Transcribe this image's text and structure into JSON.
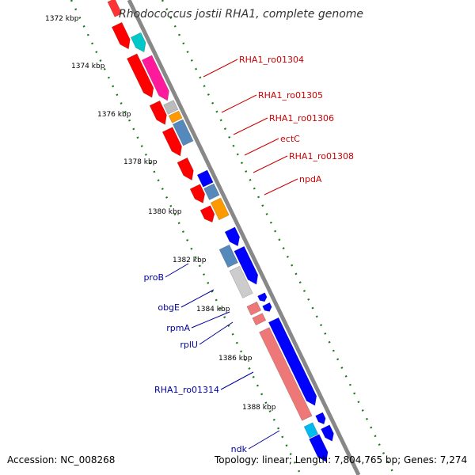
{
  "title": "Rhodococcus jostii RHA1, complete genome",
  "footer": {
    "accession": "Accession: NC_008268",
    "topology": "Topology: linear; Length: 7,804,765 bp; Genes: 7,274"
  },
  "ruler": {
    "unit": "kbp",
    "ticks": [
      "1372 kbp",
      "1374 kbp",
      "1376 kbp",
      "1378 kbp",
      "1380 kbp",
      "1382 kbp",
      "1384 kbp",
      "1386 kbp",
      "1388 kbp"
    ]
  },
  "colors": {
    "forward_default": "#ff0000",
    "reverse_default": "#0000ff",
    "forward_label": "#cc0000",
    "reverse_label": "#000099",
    "backbone": "#888888",
    "scale_dots": "#1a7a1a"
  },
  "labels_right": [
    "RHA1_ro01304",
    "RHA1_ro01305",
    "RHA1_ro01306",
    "ectC",
    "RHA1_ro01308",
    "npdA"
  ],
  "labels_left": [
    "proB",
    "obgE",
    "rpmA",
    "rplU",
    "RHA1_ro01314",
    "ndk"
  ]
}
